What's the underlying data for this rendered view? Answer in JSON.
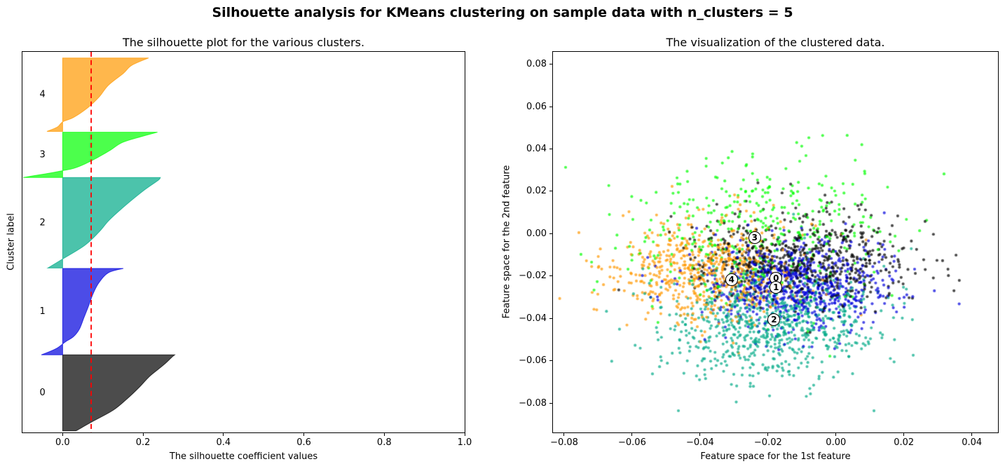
{
  "figure": {
    "suptitle": "Silhouette analysis for KMeans clustering on sample data with n_clusters = 5",
    "n_clusters": 5
  },
  "palette": {
    "cluster_colors": [
      "#000000",
      "#0000dd",
      "#00aa88",
      "#00ff00",
      "#ff9900"
    ],
    "fill_opacity": 0.7,
    "average_line_color": "#ff0000"
  },
  "chart_data": [
    {
      "id": "silhouette_plot",
      "type": "area",
      "title": "The silhouette plot for the various clusters.",
      "xlabel": "The silhouette coefficient values",
      "ylabel": "Cluster label",
      "xlim": [
        -0.1,
        1.0
      ],
      "xticks": {
        "values": [
          0.0,
          0.2,
          0.4,
          0.6,
          0.8,
          1.0
        ],
        "labels": [
          "0.0",
          "0.2",
          "0.4",
          "0.6",
          "0.8",
          "1.0"
        ]
      },
      "yticks": {
        "values": [],
        "labels": []
      },
      "average_silhouette_score": 0.071,
      "average_line_style": "dashed",
      "cluster_label_x": -0.05,
      "clusters": [
        {
          "label": "0",
          "color": "#000000",
          "size_fraction": 0.205,
          "band": [
            0.796,
            0.996
          ],
          "silhouette_profile": [
            [
              0,
              0.033
            ],
            [
              0.12,
              0.073
            ],
            [
              0.27,
              0.125
            ],
            [
              0.42,
              0.16
            ],
            [
              0.57,
              0.19
            ],
            [
              0.72,
              0.217
            ],
            [
              0.87,
              0.252
            ],
            [
              0.97,
              0.272
            ],
            [
              1,
              0.279
            ]
          ]
        },
        {
          "label": "1",
          "color": "#0000dd",
          "size_fraction": 0.233,
          "band": [
            0.569,
            0.796
          ],
          "silhouette_profile": [
            [
              0,
              -0.053
            ],
            [
              0.03,
              -0.036
            ],
            [
              0.08,
              -0.013
            ],
            [
              0.15,
              0.007
            ],
            [
              0.21,
              0.027
            ],
            [
              0.3,
              0.042
            ],
            [
              0.43,
              0.053
            ],
            [
              0.57,
              0.065
            ],
            [
              0.71,
              0.076
            ],
            [
              0.84,
              0.091
            ],
            [
              0.95,
              0.114
            ],
            [
              1,
              0.151
            ]
          ]
        },
        {
          "label": "2",
          "color": "#00aa88",
          "size_fraction": 0.244,
          "band": [
            0.33,
            0.568
          ],
          "silhouette_profile": [
            [
              0,
              -0.037
            ],
            [
              0.1,
              0.0
            ],
            [
              0.25,
              0.055
            ],
            [
              0.4,
              0.091
            ],
            [
              0.52,
              0.114
            ],
            [
              0.64,
              0.143
            ],
            [
              0.75,
              0.172
            ],
            [
              0.87,
              0.206
            ],
            [
              0.97,
              0.238
            ],
            [
              1,
              0.243
            ]
          ]
        },
        {
          "label": "3",
          "color": "#00ff00",
          "size_fraction": 0.122,
          "band": [
            0.211,
            0.33
          ],
          "silhouette_profile": [
            [
              0,
              -0.098
            ],
            [
              0.04,
              -0.071
            ],
            [
              0.09,
              -0.036
            ],
            [
              0.15,
              0.0
            ],
            [
              0.2,
              0.027
            ],
            [
              0.3,
              0.056
            ],
            [
              0.46,
              0.091
            ],
            [
              0.61,
              0.12
            ],
            [
              0.77,
              0.148
            ],
            [
              0.9,
              0.195
            ],
            [
              1,
              0.236
            ]
          ]
        },
        {
          "label": "4",
          "color": "#ff9900",
          "size_fraction": 0.197,
          "band": [
            0.016,
            0.209
          ],
          "silhouette_profile": [
            [
              0,
              -0.039
            ],
            [
              0.06,
              -0.013
            ],
            [
              0.13,
              0.0
            ],
            [
              0.19,
              0.027
            ],
            [
              0.32,
              0.062
            ],
            [
              0.47,
              0.091
            ],
            [
              0.63,
              0.114
            ],
            [
              0.79,
              0.151
            ],
            [
              0.9,
              0.172
            ],
            [
              1,
              0.214
            ]
          ]
        }
      ]
    },
    {
      "id": "clustered_data_plot",
      "type": "scatter",
      "title": "The visualization of the clustered data.",
      "xlabel": "Feature space for the 1st feature",
      "ylabel": "Feature space for the 2nd feature",
      "xlim": [
        -0.0833,
        0.0477
      ],
      "ylim": [
        -0.0938,
        0.0858
      ],
      "xticks": {
        "values": [
          -0.08,
          -0.06,
          -0.04,
          -0.02,
          0.0,
          0.02,
          0.04
        ],
        "labels": [
          "−0.08",
          "−0.06",
          "−0.04",
          "−0.02",
          "0.00",
          "0.02",
          "0.04"
        ]
      },
      "yticks": {
        "values": [
          0.08,
          0.06,
          0.04,
          0.02,
          0.0,
          -0.02,
          -0.04,
          -0.06,
          -0.08
        ],
        "labels": [
          "0.08",
          "0.06",
          "0.04",
          "0.02",
          "0.00",
          "−0.02",
          "−0.04",
          "−0.06",
          "−0.08"
        ]
      },
      "marker": {
        "radius": 2.1,
        "opacity": 0.7
      },
      "centers": [
        {
          "label": "0",
          "x": -0.0175,
          "y": -0.0212
        },
        {
          "label": "1",
          "x": -0.0175,
          "y": -0.0256
        },
        {
          "label": "2",
          "x": -0.0181,
          "y": -0.0409
        },
        {
          "label": "3",
          "x": -0.0238,
          "y": -0.0019
        },
        {
          "label": "4",
          "x": -0.0306,
          "y": -0.022
        }
      ],
      "point_blobs": [
        {
          "cluster": "0",
          "color": "#000000",
          "n": 656,
          "mean": [
            -0.01,
            -0.012
          ],
          "std": [
            0.015,
            0.011
          ]
        },
        {
          "cluster": "1",
          "color": "#0000dd",
          "n": 746,
          "mean": [
            -0.011,
            -0.024
          ],
          "std": [
            0.014,
            0.01
          ]
        },
        {
          "cluster": "2",
          "color": "#00aa88",
          "n": 781,
          "mean": [
            -0.019,
            -0.042
          ],
          "std": [
            0.016,
            0.013
          ]
        },
        {
          "cluster": "3",
          "color": "#00ff00",
          "n": 390,
          "mean": [
            -0.024,
            0.004
          ],
          "std": [
            0.02,
            0.018
          ]
        },
        {
          "cluster": "4",
          "color": "#ff9900",
          "n": 630,
          "mean": [
            -0.038,
            -0.018
          ],
          "std": [
            0.014,
            0.012
          ]
        }
      ],
      "random_seed": 7
    }
  ]
}
